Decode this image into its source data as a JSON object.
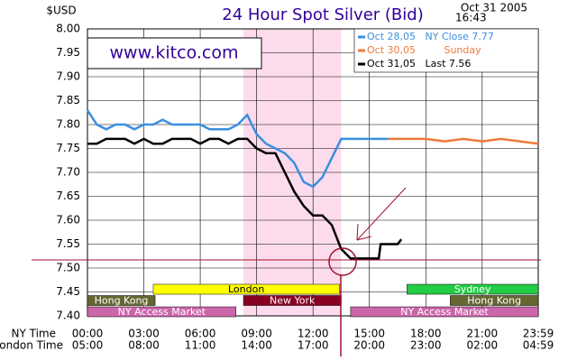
{
  "chart_data": {
    "type": "line",
    "title": "24 Hour Spot Silver (Bid)",
    "unit_label": "$USD",
    "date": "Oct 31 2005",
    "time": "16:43",
    "website": "www.kitco.com",
    "x_axis_label": "NY Time",
    "x2_axis_label": "London Time",
    "xlim": [
      0,
      23.983
    ],
    "xticks": [
      {
        "value": 0,
        "label": "00:00"
      },
      {
        "value": 3,
        "label": "03:00"
      },
      {
        "value": 6,
        "label": "06:00"
      },
      {
        "value": 9,
        "label": "09:00"
      },
      {
        "value": 12,
        "label": "12:00"
      },
      {
        "value": 15,
        "label": "15:00"
      },
      {
        "value": 18,
        "label": "18:00"
      },
      {
        "value": 21,
        "label": "21:00"
      },
      {
        "value": 23.983,
        "label": "23:59"
      }
    ],
    "xticks_london": [
      "05:00",
      "08:00",
      "11:00",
      "14:00",
      "17:00",
      "20:00",
      "23:00",
      "02:00",
      "04:59"
    ],
    "ylim": [
      7.4,
      8.0
    ],
    "yticks": [
      {
        "value": 7.4,
        "label": "7.40"
      },
      {
        "value": 7.45,
        "label": "7.45"
      },
      {
        "value": 7.5,
        "label": "7.50"
      },
      {
        "value": 7.55,
        "label": "7.55"
      },
      {
        "value": 7.6,
        "label": "7.60"
      },
      {
        "value": 7.65,
        "label": "7.65"
      },
      {
        "value": 7.7,
        "label": "7.70"
      },
      {
        "value": 7.75,
        "label": "7.75"
      },
      {
        "value": 7.8,
        "label": "7.80"
      },
      {
        "value": 7.85,
        "label": "7.85"
      },
      {
        "value": 7.9,
        "label": "7.90"
      },
      {
        "value": 7.95,
        "label": "7.95"
      },
      {
        "value": 8.0,
        "label": "8.00"
      }
    ],
    "grid": true,
    "series": [
      {
        "name": "Oct 28,05   NY Close 7.77",
        "color": "#3a8fe0",
        "x": [
          0,
          0.5,
          1,
          1.5,
          2,
          2.5,
          3,
          3.5,
          4,
          4.5,
          5,
          5.5,
          6,
          6.5,
          7,
          7.5,
          8,
          8.5,
          9,
          9.5,
          10,
          10.5,
          11,
          11.5,
          12,
          12.5,
          13,
          13.5,
          14,
          15,
          16
        ],
        "values": [
          7.83,
          7.8,
          7.79,
          7.8,
          7.8,
          7.79,
          7.8,
          7.8,
          7.81,
          7.8,
          7.8,
          7.8,
          7.8,
          7.79,
          7.79,
          7.79,
          7.8,
          7.82,
          7.78,
          7.76,
          7.75,
          7.74,
          7.72,
          7.68,
          7.67,
          7.69,
          7.73,
          7.77,
          7.77,
          7.77,
          7.77
        ]
      },
      {
        "name": "Oct 30,05         Sunday",
        "color": "#ee7a3a",
        "x": [
          16,
          17,
          18,
          19,
          20,
          21,
          22,
          23,
          23.983
        ],
        "values": [
          7.77,
          7.77,
          7.77,
          7.765,
          7.77,
          7.765,
          7.77,
          7.765,
          7.76
        ]
      },
      {
        "name": "Oct 31,05   Last 7.56",
        "color": "#000000",
        "x": [
          0,
          0.5,
          1,
          1.5,
          2,
          2.5,
          3,
          3.5,
          4,
          4.5,
          5,
          5.5,
          6,
          6.5,
          7,
          7.5,
          8,
          8.5,
          9,
          9.5,
          10,
          10.5,
          11,
          11.5,
          12,
          12.5,
          13,
          13.5,
          14,
          15,
          15.5,
          15.6,
          16.5,
          16.7
        ],
        "values": [
          7.76,
          7.76,
          7.77,
          7.77,
          7.77,
          7.76,
          7.77,
          7.76,
          7.76,
          7.77,
          7.77,
          7.77,
          7.76,
          7.77,
          7.77,
          7.76,
          7.77,
          7.77,
          7.75,
          7.74,
          7.74,
          7.7,
          7.66,
          7.63,
          7.61,
          7.61,
          7.59,
          7.54,
          7.52,
          7.52,
          7.52,
          7.55,
          7.55,
          7.56
        ]
      }
    ],
    "sessions": [
      [
        {
          "name": "London",
          "start": 3.5,
          "end": 13.4,
          "color": "#ffff00"
        },
        {
          "name": "Sydney",
          "start": 17,
          "end": 23.983,
          "color": "#22cc44"
        }
      ],
      [
        {
          "name": "Hong Kong",
          "start": 0,
          "end": 3.6,
          "color": "#666633"
        },
        {
          "name": "New York",
          "start": 8.3,
          "end": 13.5,
          "color": "#880022"
        },
        {
          "name": "Hong Kong",
          "start": 19.3,
          "end": 23.983,
          "color": "#666633"
        }
      ],
      [
        {
          "name": "NY Access Market",
          "start": 0,
          "end": 7.9,
          "color": "#cc66aa"
        },
        {
          "name": "NY Access Market",
          "start": 14,
          "end": 23.983,
          "color": "#cc66aa"
        }
      ]
    ]
  }
}
